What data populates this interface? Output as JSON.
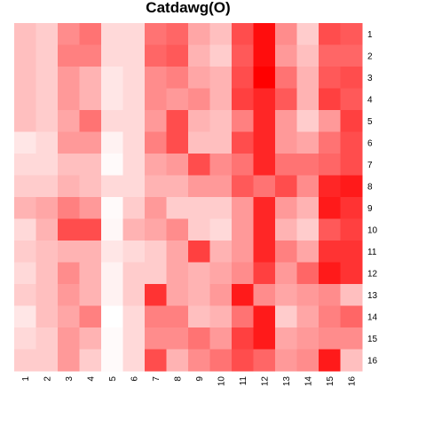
{
  "chart_data": {
    "type": "heatmap",
    "title": "Catdawg(O)",
    "x_labels": [
      "1",
      "2",
      "3",
      "4",
      "5",
      "6",
      "7",
      "8",
      "9",
      "10",
      "11",
      "12",
      "13",
      "14",
      "15",
      "16"
    ],
    "y_labels": [
      "1",
      "2",
      "3",
      "4",
      "5",
      "6",
      "7",
      "8",
      "9",
      "10",
      "11",
      "12",
      "13",
      "14",
      "15",
      "16"
    ],
    "color_low": "#ffffff",
    "color_high": "#ff0000",
    "value_range": [
      0,
      1
    ],
    "values": [
      [
        0.25,
        0.2,
        0.45,
        0.55,
        0.15,
        0.15,
        0.55,
        0.6,
        0.35,
        0.25,
        0.7,
        0.95,
        0.45,
        0.2,
        0.7,
        0.65
      ],
      [
        0.25,
        0.2,
        0.5,
        0.5,
        0.15,
        0.15,
        0.6,
        0.65,
        0.3,
        0.2,
        0.65,
        0.95,
        0.4,
        0.25,
        0.6,
        0.6
      ],
      [
        0.25,
        0.2,
        0.4,
        0.3,
        0.1,
        0.15,
        0.45,
        0.5,
        0.35,
        0.3,
        0.7,
        1.0,
        0.55,
        0.3,
        0.65,
        0.7
      ],
      [
        0.25,
        0.2,
        0.4,
        0.3,
        0.1,
        0.15,
        0.45,
        0.4,
        0.45,
        0.3,
        0.75,
        0.85,
        0.65,
        0.3,
        0.75,
        0.65
      ],
      [
        0.25,
        0.2,
        0.35,
        0.55,
        0.15,
        0.15,
        0.4,
        0.7,
        0.3,
        0.25,
        0.5,
        0.85,
        0.4,
        0.2,
        0.4,
        0.75
      ],
      [
        0.1,
        0.15,
        0.4,
        0.4,
        0.05,
        0.15,
        0.5,
        0.7,
        0.25,
        0.25,
        0.7,
        0.85,
        0.4,
        0.35,
        0.55,
        0.7
      ],
      [
        0.15,
        0.15,
        0.25,
        0.25,
        0.02,
        0.15,
        0.35,
        0.4,
        0.7,
        0.45,
        0.55,
        0.85,
        0.55,
        0.55,
        0.6,
        0.7
      ],
      [
        0.2,
        0.2,
        0.3,
        0.25,
        0.15,
        0.15,
        0.3,
        0.3,
        0.4,
        0.4,
        0.65,
        0.55,
        0.7,
        0.45,
        0.85,
        0.9
      ],
      [
        0.3,
        0.35,
        0.5,
        0.4,
        0.02,
        0.2,
        0.4,
        0.2,
        0.2,
        0.2,
        0.4,
        0.85,
        0.4,
        0.3,
        0.9,
        0.8
      ],
      [
        0.15,
        0.3,
        0.7,
        0.7,
        0.03,
        0.3,
        0.35,
        0.45,
        0.2,
        0.15,
        0.4,
        0.85,
        0.3,
        0.2,
        0.65,
        0.75
      ],
      [
        0.2,
        0.25,
        0.3,
        0.3,
        0.1,
        0.15,
        0.2,
        0.35,
        0.75,
        0.3,
        0.4,
        0.85,
        0.5,
        0.35,
        0.8,
        0.8
      ],
      [
        0.15,
        0.25,
        0.45,
        0.3,
        0.05,
        0.2,
        0.2,
        0.35,
        0.3,
        0.35,
        0.45,
        0.75,
        0.4,
        0.6,
        0.9,
        0.8
      ],
      [
        0.2,
        0.25,
        0.4,
        0.3,
        0.05,
        0.2,
        0.8,
        0.35,
        0.3,
        0.4,
        0.9,
        0.45,
        0.35,
        0.4,
        0.45,
        0.25
      ],
      [
        0.1,
        0.25,
        0.35,
        0.5,
        0.0,
        0.15,
        0.5,
        0.5,
        0.25,
        0.3,
        0.55,
        0.9,
        0.2,
        0.35,
        0.5,
        0.6
      ],
      [
        0.15,
        0.2,
        0.4,
        0.3,
        0.02,
        0.15,
        0.45,
        0.45,
        0.55,
        0.4,
        0.75,
        0.9,
        0.35,
        0.4,
        0.45,
        0.45
      ],
      [
        0.2,
        0.2,
        0.4,
        0.2,
        0.02,
        0.15,
        0.7,
        0.3,
        0.45,
        0.55,
        0.7,
        0.6,
        0.4,
        0.45,
        0.9,
        0.25
      ]
    ]
  }
}
